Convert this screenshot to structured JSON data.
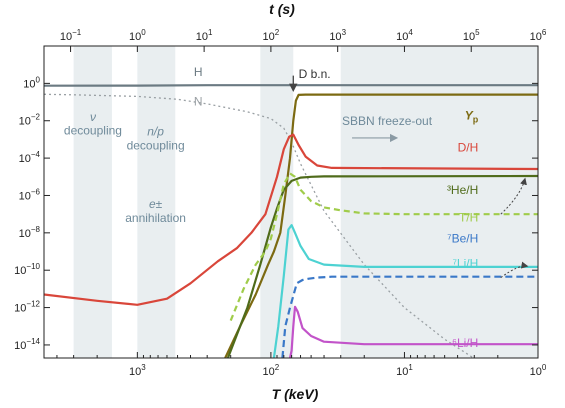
{
  "chart_data": {
    "type": "line",
    "xlabel_bottom": "T (keV)",
    "xlabel_top": "t (s)",
    "x_scale": "log-reversed",
    "xlim_keV": [
      5000,
      1
    ],
    "ylim": [
      2e-15,
      100.0
    ],
    "y_scale": "log",
    "bottom_ticks": [
      {
        "value": 1000,
        "base": "10",
        "exp": "3"
      },
      {
        "value": 100,
        "base": "10",
        "exp": "2"
      },
      {
        "value": 10,
        "base": "10",
        "exp": "1"
      },
      {
        "value": 1,
        "base": "10",
        "exp": "0"
      }
    ],
    "top_ticks": [
      {
        "value": 0.1,
        "base": "10",
        "exp": "−1"
      },
      {
        "value": 1,
        "base": "10",
        "exp": "0"
      },
      {
        "value": 10,
        "base": "10",
        "exp": "1"
      },
      {
        "value": 100,
        "base": "10",
        "exp": "2"
      },
      {
        "value": 1000,
        "base": "10",
        "exp": "3"
      },
      {
        "value": 10000,
        "base": "10",
        "exp": "4"
      },
      {
        "value": 100000,
        "base": "10",
        "exp": "5"
      },
      {
        "value": 1000000,
        "base": "10",
        "exp": "6"
      }
    ],
    "y_ticks": [
      {
        "value": 1,
        "base": "10",
        "exp": "0"
      },
      {
        "value": 0.01,
        "base": "10",
        "exp": "−2"
      },
      {
        "value": 0.0001,
        "base": "10",
        "exp": "−4"
      },
      {
        "value": 1e-06,
        "base": "10",
        "exp": "−6"
      },
      {
        "value": 1e-08,
        "base": "10",
        "exp": "−8"
      },
      {
        "value": 1e-10,
        "base": "10",
        "exp": "−10"
      },
      {
        "value": 1e-12,
        "base": "10",
        "exp": "−12"
      },
      {
        "value": 1e-14,
        "base": "10",
        "exp": "−14"
      }
    ],
    "bands_keV": [
      [
        3000,
        1550
      ],
      [
        1000,
        520
      ],
      [
        120,
        68
      ],
      [
        30,
        1
      ]
    ],
    "annotations": [
      {
        "text": "ν",
        "T": 2150,
        "y": 0.0095,
        "italic": true,
        "color": "#6f8a9a"
      },
      {
        "text": "decoupling",
        "T": 2150,
        "y": 0.0018,
        "italic": false,
        "color": "#6f8a9a"
      },
      {
        "text": "n/p",
        "T": 730,
        "y": 0.0016,
        "italic": true,
        "color": "#6f8a9a"
      },
      {
        "text": "decoupling",
        "T": 730,
        "y": 0.00028,
        "italic": false,
        "color": "#6f8a9a"
      },
      {
        "text": "e±",
        "T": 730,
        "y": 2.1e-07,
        "italic": true,
        "color": "#6f8a9a"
      },
      {
        "text": "annihilation",
        "T": 730,
        "y": 3.9e-08,
        "italic": false,
        "color": "#6f8a9a"
      },
      {
        "text": "D b.n.",
        "T": 62,
        "y": 1.9,
        "italic": false,
        "color": "#333333"
      },
      {
        "text": "SBBN freeze-out",
        "T": 13.5,
        "y": 0.006,
        "italic": false,
        "color": "#6f8a9a"
      }
    ],
    "series": [
      {
        "name": "H",
        "color": "#6b7a82",
        "dash": "",
        "label_T": 350,
        "label_y": 2.5,
        "points": [
          [
            5000,
            0.75
          ],
          [
            1000,
            0.76
          ],
          [
            300,
            0.8
          ],
          [
            100,
            0.8
          ],
          [
            70,
            0.8
          ],
          [
            1,
            0.8
          ]
        ]
      },
      {
        "name": "N",
        "color": "#9aa0a4",
        "dash": "2 3",
        "label_T": 350,
        "label_y": 0.065,
        "points": [
          [
            5000,
            0.26
          ],
          [
            3000,
            0.245
          ],
          [
            1000,
            0.2
          ],
          [
            500,
            0.14
          ],
          [
            300,
            0.08
          ],
          [
            150,
            0.03
          ],
          [
            100,
            0.013
          ],
          [
            80,
            0.004
          ],
          [
            70,
            0.0007
          ],
          [
            60,
            5e-05
          ],
          [
            40,
            1.5e-07
          ],
          [
            20,
            2e-10
          ],
          [
            10,
            1e-12
          ],
          [
            5,
            2e-14
          ],
          [
            2.5,
            8e-16
          ]
        ]
      },
      {
        "name": "Yp",
        "color": "#7c6a12",
        "dash": "",
        "label_T": 2.8,
        "label_y": 0.012,
        "points": [
          [
            220,
            2e-15
          ],
          [
            170,
            1e-13
          ],
          [
            130,
            5e-12
          ],
          [
            105,
            2e-10
          ],
          [
            95,
            1e-09
          ],
          [
            85,
            1e-08
          ],
          [
            78,
            1e-06
          ],
          [
            72,
            0.0001
          ],
          [
            68,
            0.01
          ],
          [
            65,
            0.12
          ],
          [
            62,
            0.24
          ],
          [
            55,
            0.25
          ],
          [
            1,
            0.25
          ]
        ]
      },
      {
        "name": "D/H",
        "color": "#d9463a",
        "dash": "",
        "label_T": 2.8,
        "label_y": 0.00022,
        "points": [
          [
            5000,
            5e-12
          ],
          [
            2000,
            2.3e-12
          ],
          [
            1000,
            1.4e-12
          ],
          [
            600,
            3e-12
          ],
          [
            400,
            2e-11
          ],
          [
            250,
            3e-10
          ],
          [
            180,
            1.5e-09
          ],
          [
            140,
            1e-08
          ],
          [
            110,
            1e-07
          ],
          [
            90,
            1e-05
          ],
          [
            80,
            0.0003
          ],
          [
            73,
            0.0014
          ],
          [
            68,
            0.0018
          ],
          [
            62,
            0.0005
          ],
          [
            55,
            0.00012
          ],
          [
            45,
            4e-05
          ],
          [
            35,
            3e-05
          ],
          [
            1,
            2.6e-05
          ]
        ]
      },
      {
        "name": "³He/H",
        "color": "#4f6b1a",
        "dash": "",
        "label_T": 2.8,
        "label_y": 1.2e-06,
        "points": [
          [
            210,
            2e-15
          ],
          [
            170,
            1e-13
          ],
          [
            150,
            1e-12
          ],
          [
            120,
            2e-10
          ],
          [
            100,
            2e-08
          ],
          [
            90,
            2e-07
          ],
          [
            80,
            2e-06
          ],
          [
            70,
            6e-06
          ],
          [
            60,
            9e-06
          ],
          [
            50,
            1e-05
          ],
          [
            40,
            1.05e-05
          ],
          [
            1,
            1.1e-05
          ]
        ]
      },
      {
        "name": "T/H",
        "color": "#a0cc4a",
        "dash": "6 4",
        "label_T": 2.8,
        "label_y": 4e-08,
        "points": [
          [
            200,
            2e-13
          ],
          [
            160,
            1e-11
          ],
          [
            130,
            2e-10
          ],
          [
            110,
            1e-09
          ],
          [
            100,
            5e-09
          ],
          [
            90,
            1e-07
          ],
          [
            80,
            4e-06
          ],
          [
            72,
            1.5e-05
          ],
          [
            66,
            1e-05
          ],
          [
            60,
            2e-06
          ],
          [
            50,
            5e-07
          ],
          [
            40,
            2.3e-07
          ],
          [
            30,
            1.6e-07
          ],
          [
            20,
            1.1e-07
          ],
          [
            10,
            1e-07
          ],
          [
            1,
            1e-07
          ]
        ]
      },
      {
        "name": "⁷Be/H",
        "color": "#3a78c8",
        "dash": "7 4",
        "label_T": 2.8,
        "label_y": 3e-09,
        "points": [
          [
            82,
            2e-15
          ],
          [
            78,
            1e-13
          ],
          [
            72,
            1e-12
          ],
          [
            64,
            2e-11
          ],
          [
            58,
            3e-11
          ],
          [
            52,
            3.5e-11
          ],
          [
            45,
            4e-11
          ],
          [
            35,
            4.5e-11
          ],
          [
            1,
            4.5e-11
          ]
        ]
      },
      {
        "name": "⁷Li/H",
        "color": "#4dd2d2",
        "dash": "",
        "label_T": 2.8,
        "label_y": 1.4e-10,
        "points": [
          [
            95,
            2e-15
          ],
          [
            88,
            1e-13
          ],
          [
            80,
            5e-11
          ],
          [
            74,
            1.5e-08
          ],
          [
            70,
            2.6e-08
          ],
          [
            66,
            1e-08
          ],
          [
            60,
            2e-09
          ],
          [
            52,
            4e-10
          ],
          [
            40,
            2e-10
          ],
          [
            20,
            1.5e-10
          ],
          [
            1,
            1.5e-10
          ]
        ]
      },
      {
        "name": "⁶Li/H",
        "color": "#c253c9",
        "dash": "",
        "label_T": 2.8,
        "label_y": 8e-15,
        "points": [
          [
            72,
            2e-15
          ],
          [
            70,
            5e-15
          ],
          [
            68,
            1e-13
          ],
          [
            66,
            1.1e-12
          ],
          [
            63,
            6e-13
          ],
          [
            58,
            8e-14
          ],
          [
            50,
            3e-14
          ],
          [
            40,
            1.5e-14
          ],
          [
            20,
            1.1e-14
          ],
          [
            1,
            1.1e-14
          ]
        ]
      }
    ]
  }
}
